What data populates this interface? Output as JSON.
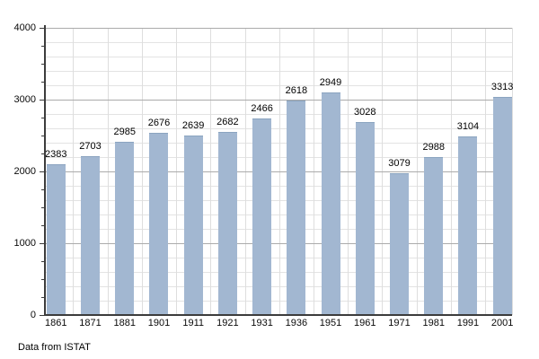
{
  "chart_data": {
    "type": "bar",
    "title": "",
    "xlabel": "",
    "ylabel": "",
    "categories": [
      "1861",
      "1871",
      "1881",
      "1901",
      "1911",
      "1921",
      "1931",
      "1936",
      "1951",
      "1961",
      "1971",
      "1981",
      "1991",
      "2001"
    ],
    "values": [
      2383,
      2703,
      2985,
      2676,
      2639,
      2682,
      2466,
      2618,
      2949,
      3028,
      3079,
      2988,
      3104,
      3313
    ],
    "rendered_bar_heights": [
      2100,
      2210,
      2410,
      2540,
      2500,
      2550,
      2740,
      2980,
      3100,
      2690,
      1970,
      2200,
      2490,
      3030
    ],
    "data_labels_shown": true,
    "ylim": [
      0,
      4000
    ],
    "ytick_labels": [
      "0",
      "1000",
      "2000",
      "3000",
      "4000"
    ],
    "ytick_values": [
      0,
      1000,
      2000,
      3000,
      4000
    ],
    "minor_hgrid_step": 200,
    "axis_minor_tick_step": 250,
    "grid": "on",
    "vertical_grid": "category-boundaries",
    "legend_position": "none",
    "bar_color": "#a2b7d1",
    "bar_edge_color": "#8ba4c0",
    "major_grid_color": "#ababab",
    "minor_grid_color": "#e3e3e3",
    "vertical_grid_color": "#dedede",
    "axis_color": "#3c3c3c",
    "annotation": "Data from ISTAT"
  },
  "caption": {
    "text": "Data from ISTAT"
  }
}
